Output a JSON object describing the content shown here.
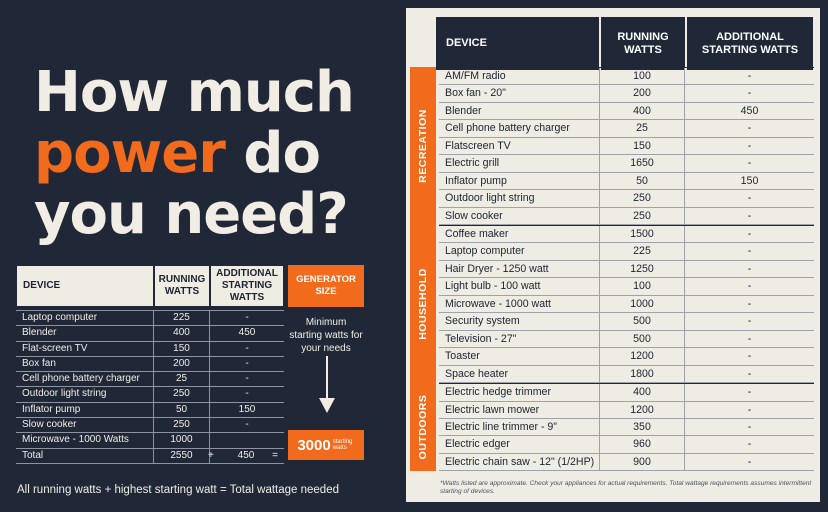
{
  "headline": {
    "line1": "How much",
    "accent": "power",
    "line2_rest": " do",
    "line3": "you need?"
  },
  "example_table": {
    "headers": {
      "device": "DEVICE",
      "running": "RUNNING WATTS",
      "starting": "ADDITIONAL STARTING WATTS"
    },
    "rows": [
      {
        "device": "Laptop computer",
        "running": "225",
        "starting": "-"
      },
      {
        "device": "Blender",
        "running": "400",
        "starting": "450"
      },
      {
        "device": "Flat-screen TV",
        "running": "150",
        "starting": "-"
      },
      {
        "device": "Box fan",
        "running": "200",
        "starting": "-"
      },
      {
        "device": "Cell phone battery charger",
        "running": "25",
        "starting": "-"
      },
      {
        "device": "Outdoor light string",
        "running": "250",
        "starting": "-"
      },
      {
        "device": "Inflator pump",
        "running": "50",
        "starting": "150"
      },
      {
        "device": "Slow cooker",
        "running": "250",
        "starting": "-"
      },
      {
        "device": "Microwave - 1000 Watts",
        "running": "1000",
        "starting": ""
      }
    ],
    "total": {
      "label": "Total",
      "running": "2550",
      "plus": "+",
      "starting": "450",
      "equals": "="
    }
  },
  "generator": {
    "header": "GENERATOR SIZE",
    "note": "Minimum starting watts for your needs",
    "result_value": "3000",
    "result_unit": "starting watts"
  },
  "formula": "All running watts + highest starting watt = Total wattage needed",
  "reference_table": {
    "headers": {
      "device": "DEVICE",
      "running": "RUNNING WATTS",
      "starting": "ADDITIONAL STARTING WATTS"
    },
    "groups": [
      {
        "name": "RECREATION",
        "rows": [
          {
            "device": "AM/FM radio",
            "running": "100",
            "starting": "-"
          },
          {
            "device": "Box fan - 20\"",
            "running": "200",
            "starting": "-"
          },
          {
            "device": "Blender",
            "running": "400",
            "starting": "450"
          },
          {
            "device": "Cell phone battery charger",
            "running": "25",
            "starting": "-"
          },
          {
            "device": "Flatscreen TV",
            "running": "150",
            "starting": "-"
          },
          {
            "device": "Electric grill",
            "running": "1650",
            "starting": "-"
          },
          {
            "device": "Inflator pump",
            "running": "50",
            "starting": "150"
          },
          {
            "device": "Outdoor light string",
            "running": "250",
            "starting": "-"
          },
          {
            "device": "Slow cooker",
            "running": "250",
            "starting": "-"
          }
        ]
      },
      {
        "name": "HOUSEHOLD",
        "rows": [
          {
            "device": "Coffee maker",
            "running": "1500",
            "starting": "-"
          },
          {
            "device": "Laptop computer",
            "running": "225",
            "starting": "-"
          },
          {
            "device": "Hair Dryer - 1250 watt",
            "running": "1250",
            "starting": "-"
          },
          {
            "device": "Light bulb - 100 watt",
            "running": "100",
            "starting": "-"
          },
          {
            "device": "Microwave - 1000 watt",
            "running": "1000",
            "starting": "-"
          },
          {
            "device": "Security system",
            "running": "500",
            "starting": "-"
          },
          {
            "device": "Television - 27\"",
            "running": "500",
            "starting": "-"
          },
          {
            "device": "Toaster",
            "running": "1200",
            "starting": "-"
          },
          {
            "device": "Space heater",
            "running": "1800",
            "starting": "-"
          }
        ]
      },
      {
        "name": "OUTDOORS",
        "rows": [
          {
            "device": "Electric hedge trimmer",
            "running": "400",
            "starting": "-"
          },
          {
            "device": "Electric lawn mower",
            "running": "1200",
            "starting": "-"
          },
          {
            "device": "Electric line trimmer - 9\"",
            "running": "350",
            "starting": "-"
          },
          {
            "device": "Electric edger",
            "running": "960",
            "starting": "-"
          },
          {
            "device": "Electric chain saw - 12\" (1/2HP)",
            "running": "900",
            "starting": "-"
          }
        ]
      }
    ]
  },
  "footnote": "*Watts listed are approximate. Check your appliances for actual requirements. Total wattage requirements assumes intermittent starting of devices.",
  "colors": {
    "background": "#202838",
    "accent": "#f26a1b",
    "panel": "#efece3"
  }
}
